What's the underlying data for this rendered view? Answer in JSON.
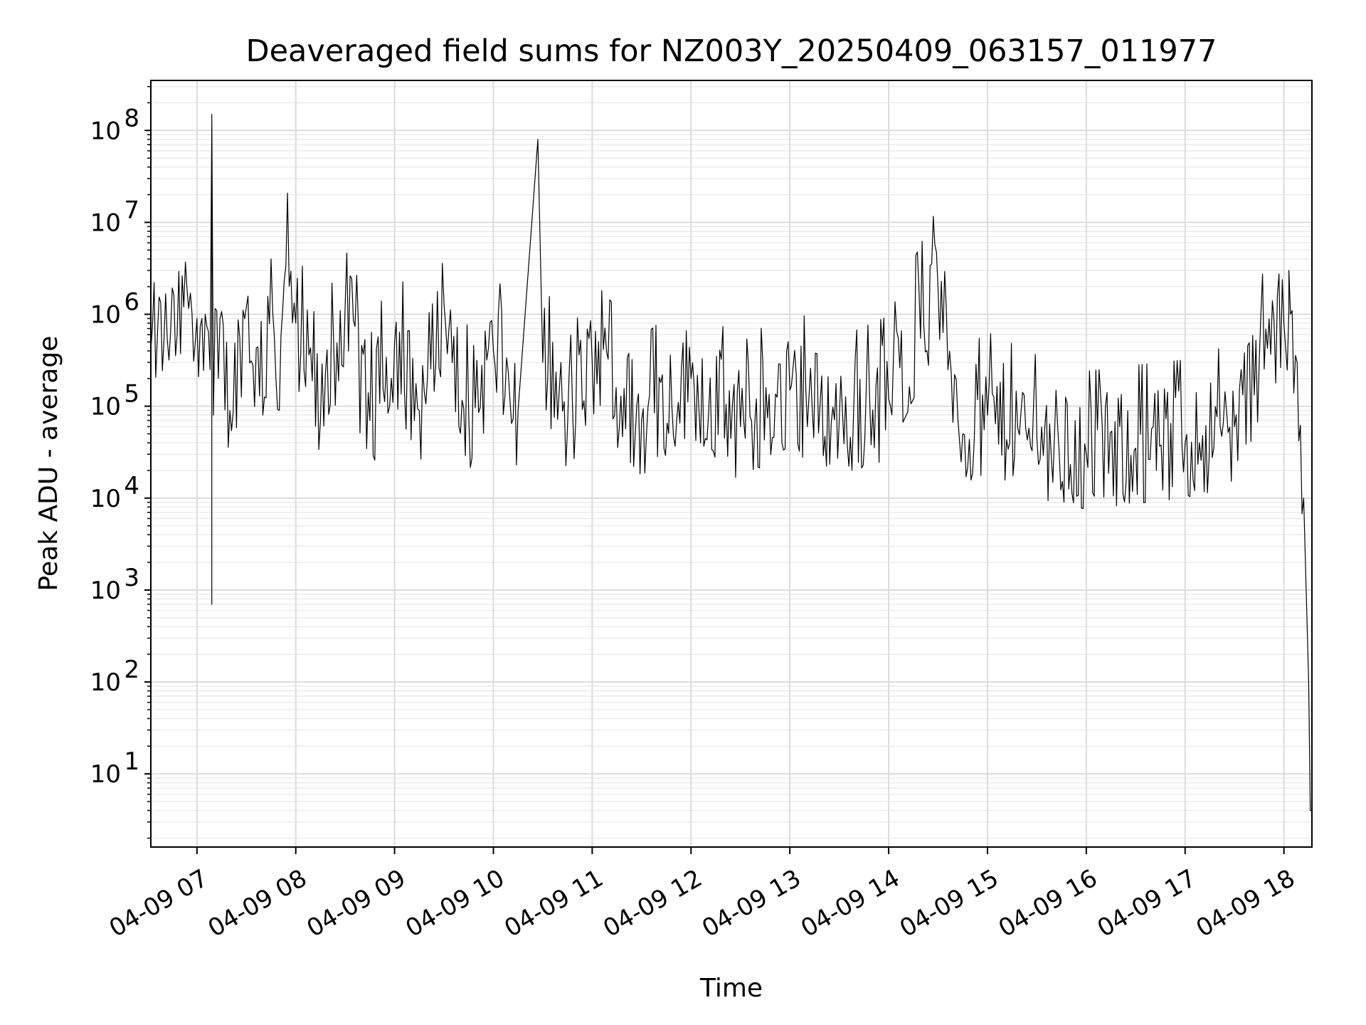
{
  "chart_data": {
    "type": "line",
    "title": "Deaveraged field sums for NZ003Y_20250409_063157_011977",
    "xlabel": "Time",
    "ylabel": "Peak ADU - average",
    "yscale": "log",
    "ylim": [
      1.6,
      350000000.0
    ],
    "xlim": [
      "2025-04-09 06:32",
      "2025-04-09 18:17"
    ],
    "grid": true,
    "line_color": "#000000",
    "x_ticks": [
      "2025-04-09 07:00",
      "2025-04-09 08:00",
      "2025-04-09 09:00",
      "2025-04-09 10:00",
      "2025-04-09 11:00",
      "2025-04-09 12:00",
      "2025-04-09 13:00",
      "2025-04-09 14:00",
      "2025-04-09 15:00",
      "2025-04-09 16:00",
      "2025-04-09 17:00",
      "2025-04-09 18:00"
    ],
    "x_tick_labels": [
      "04-09 07",
      "04-09 08",
      "04-09 09",
      "04-09 10",
      "04-09 11",
      "04-09 12",
      "04-09 13",
      "04-09 14",
      "04-09 15",
      "04-09 16",
      "04-09 17",
      "04-09 18"
    ],
    "y_ticks": [
      10,
      100,
      1000,
      10000,
      100000,
      1000000,
      10000000,
      100000000
    ],
    "y_tick_labels": [
      {
        "base": "10",
        "exp": "1"
      },
      {
        "base": "10",
        "exp": "2"
      },
      {
        "base": "10",
        "exp": "3"
      },
      {
        "base": "10",
        "exp": "4"
      },
      {
        "base": "10",
        "exp": "5"
      },
      {
        "base": "10",
        "exp": "6"
      },
      {
        "base": "10",
        "exp": "7"
      },
      {
        "base": "10",
        "exp": "8"
      }
    ],
    "series": [
      {
        "points": [
          [
            "2025-04-09 06:32",
            420000
          ],
          [
            "2025-04-09 06:36",
            600000
          ],
          [
            "2025-04-09 06:40",
            520000
          ],
          [
            "2025-04-09 06:44",
            650000
          ],
          [
            "2025-04-09 06:48",
            600000
          ],
          [
            "2025-04-09 06:52",
            1200000
          ],
          [
            "2025-04-09 06:56",
            1700000
          ],
          [
            "2025-04-09 07:00",
            900000
          ],
          [
            "2025-04-09 07:05",
            1000000
          ],
          [
            "2025-04-09 07:08",
            250000
          ],
          [
            "2025-04-09 07:09",
            120000000
          ],
          [
            "2025-04-09 07:09",
            700
          ],
          [
            "2025-04-09 07:09",
            150000000
          ],
          [
            "2025-04-09 07:10",
            80000
          ],
          [
            "2025-04-09 07:12",
            1100000
          ],
          [
            "2025-04-09 07:20",
            90000
          ],
          [
            "2025-04-09 07:30",
            1200000
          ],
          [
            "2025-04-09 07:40",
            80000
          ],
          [
            "2025-04-09 07:45",
            4000000
          ],
          [
            "2025-04-09 07:50",
            90000
          ],
          [
            "2025-04-09 07:54",
            3300000
          ],
          [
            "2025-04-09 08:00",
            800000
          ],
          [
            "2025-04-09 08:15",
            70000
          ],
          [
            "2025-04-09 08:30",
            1300000
          ],
          [
            "2025-04-09 08:45",
            70000
          ],
          [
            "2025-04-09 09:00",
            500000
          ],
          [
            "2025-04-09 09:15",
            90000
          ],
          [
            "2025-04-09 09:30",
            1300000
          ],
          [
            "2025-04-09 09:45",
            80000
          ],
          [
            "2025-04-09 10:00",
            400000
          ],
          [
            "2025-04-09 10:15",
            90000
          ],
          [
            "2025-04-09 10:27",
            80000000
          ],
          [
            "2025-04-09 10:30",
            300000
          ],
          [
            "2025-04-09 10:45",
            60000
          ],
          [
            "2025-04-09 11:00",
            300000
          ],
          [
            "2025-04-09 11:30",
            70000
          ],
          [
            "2025-04-09 12:00",
            200000
          ],
          [
            "2025-04-09 12:30",
            60000
          ],
          [
            "2025-04-09 13:00",
            150000
          ],
          [
            "2025-04-09 13:30",
            70000
          ],
          [
            "2025-04-09 14:00",
            120000
          ],
          [
            "2025-04-09 14:30",
            1900000
          ],
          [
            "2025-04-09 14:45",
            50000
          ],
          [
            "2025-04-09 15:00",
            80000
          ],
          [
            "2025-04-09 15:30",
            45000
          ],
          [
            "2025-04-09 16:00",
            30000
          ],
          [
            "2025-04-09 16:30",
            35000
          ],
          [
            "2025-04-09 17:00",
            40000
          ],
          [
            "2025-04-09 17:30",
            60000
          ],
          [
            "2025-04-09 17:45",
            300000
          ],
          [
            "2025-04-09 18:00",
            800000
          ],
          [
            "2025-04-09 18:03",
            1100000
          ],
          [
            "2025-04-09 18:03",
            3000000
          ],
          [
            "2025-04-09 18:04",
            1000000
          ],
          [
            "2025-04-09 18:08",
            300000
          ],
          [
            "2025-04-09 18:12",
            10000
          ],
          [
            "2025-04-09 18:15",
            100
          ],
          [
            "2025-04-09 18:16",
            4
          ],
          [
            "2025-04-09 18:17",
            4
          ]
        ]
      }
    ]
  }
}
